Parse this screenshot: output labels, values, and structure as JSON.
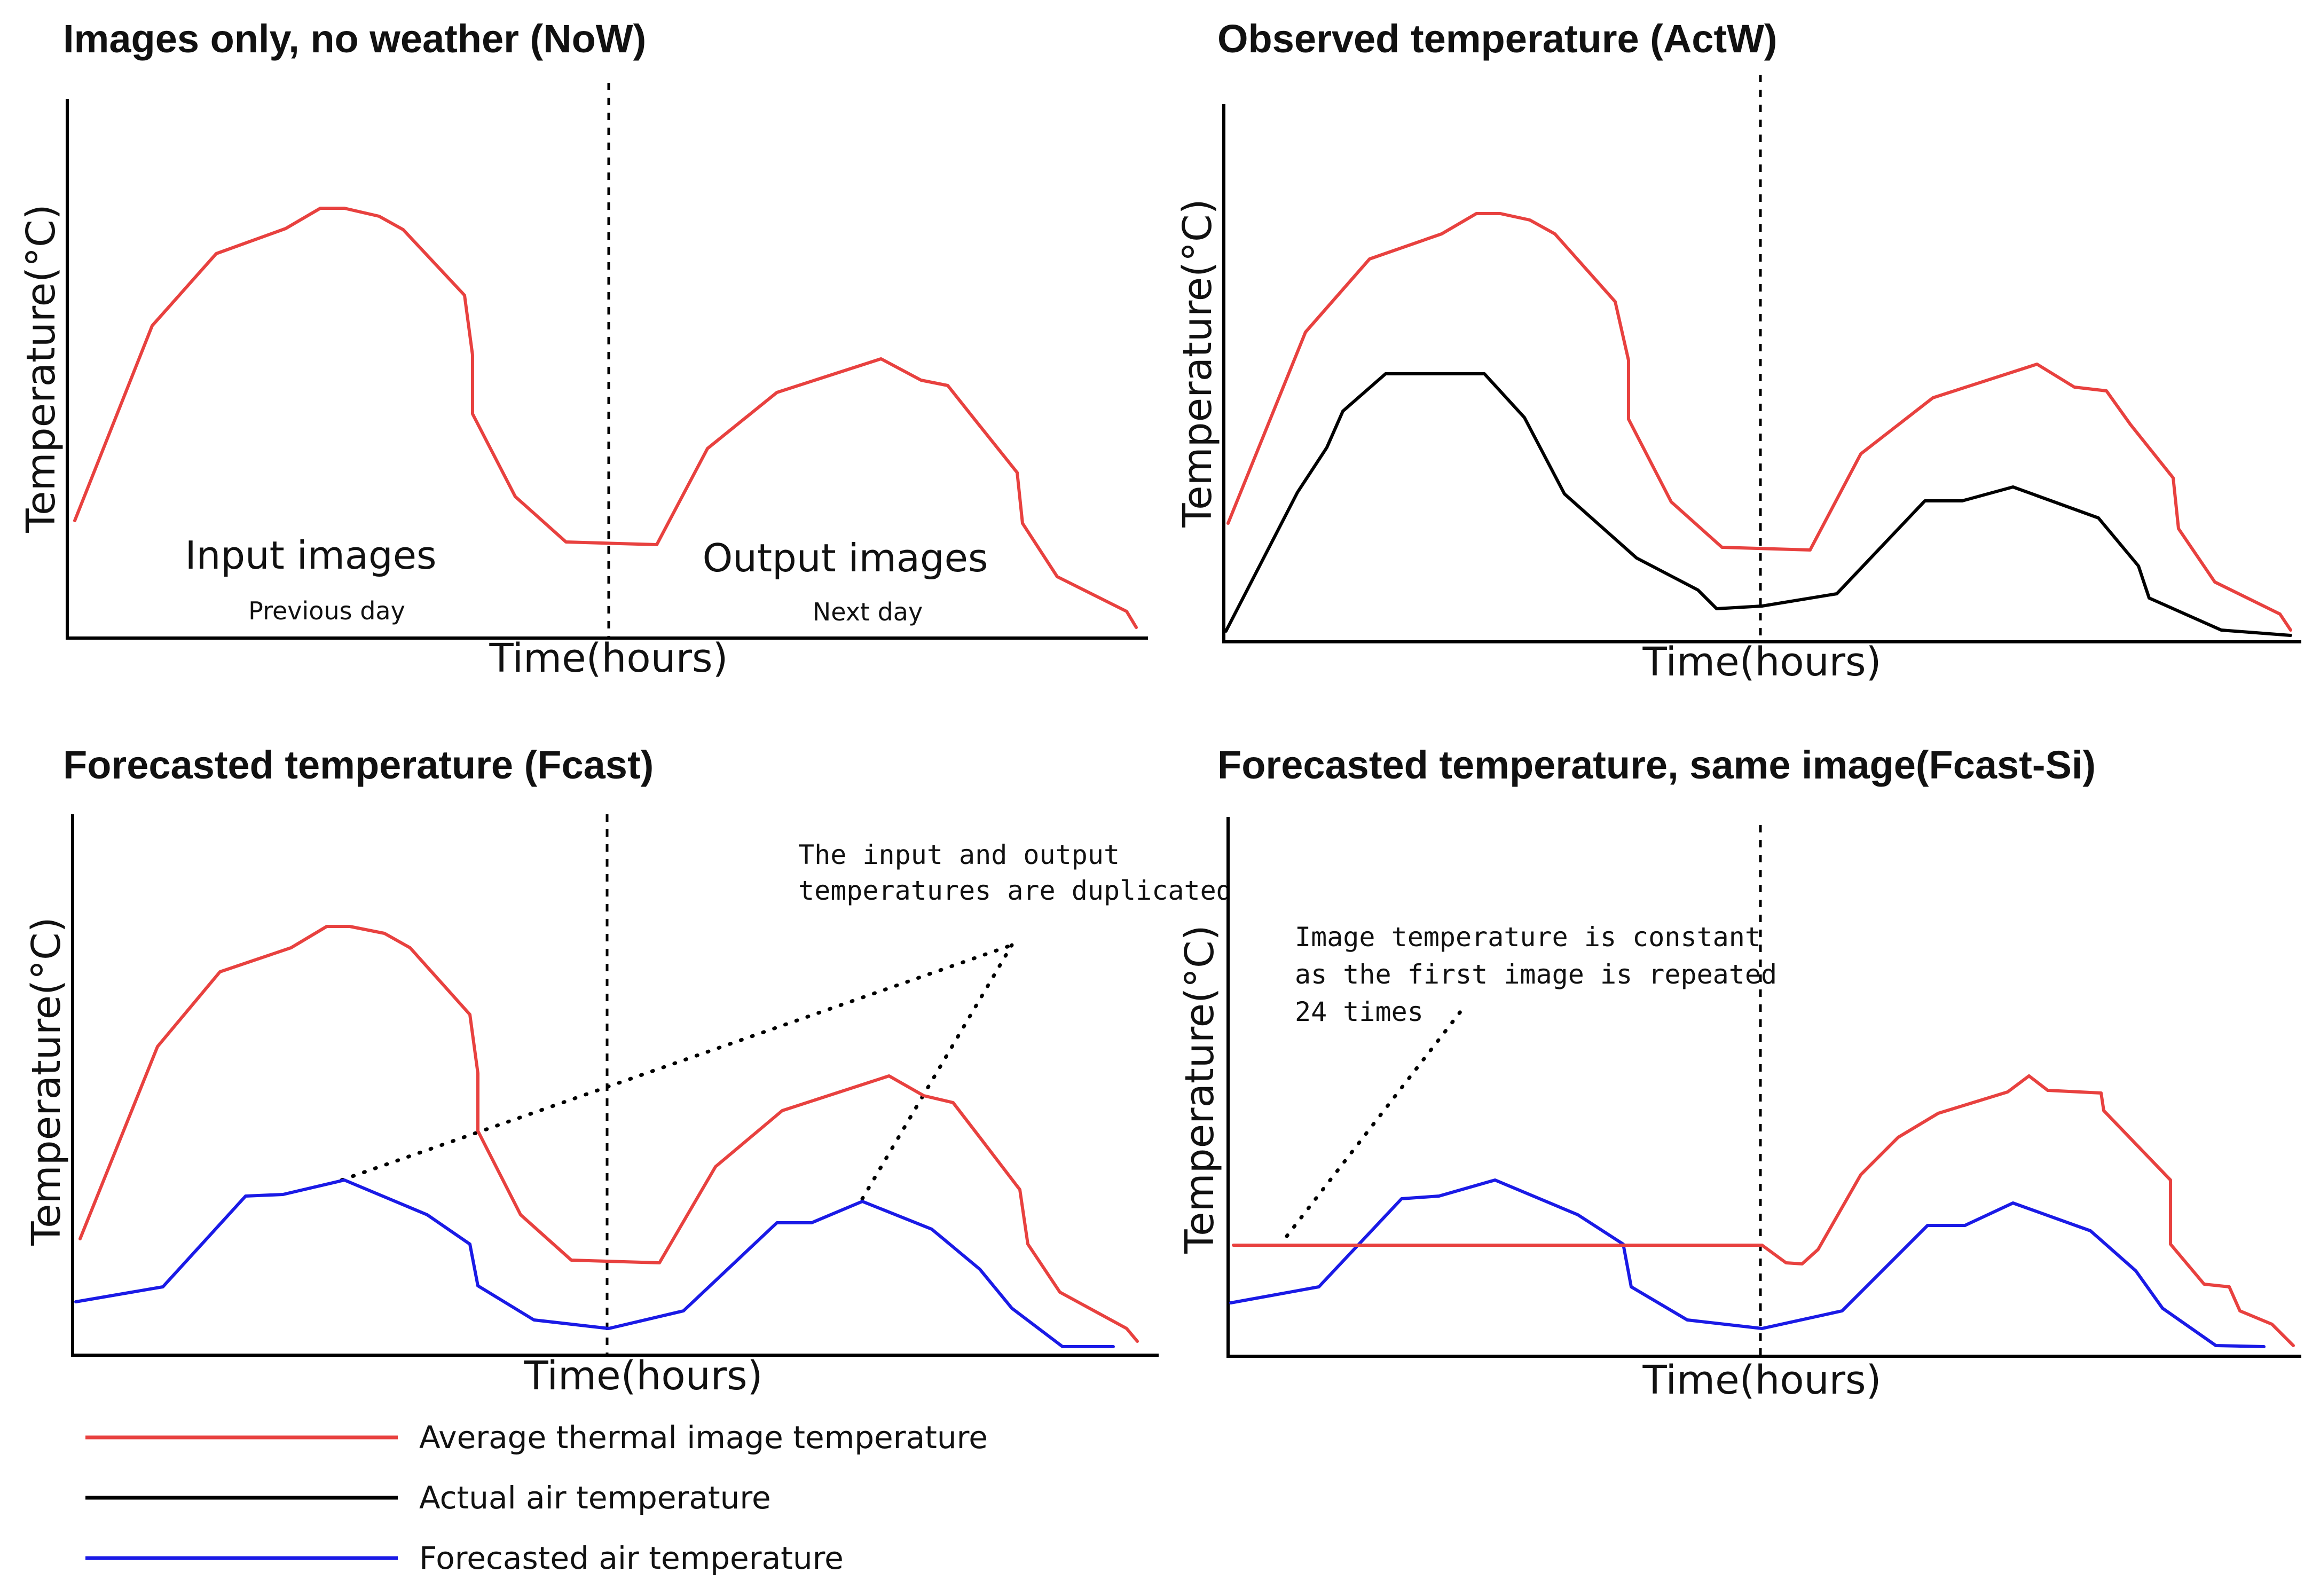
{
  "colors": {
    "thermal": "#e8413f",
    "actual": "#000000",
    "forecast": "#1a1ae6"
  },
  "panels": [
    {
      "id": "now",
      "title": "Images only, no weather (NoW)",
      "xlabel": "Time(hours)",
      "ylabel": "Temperature(°C)",
      "regions": {
        "left": "Input images",
        "left_sub": "Previous day",
        "right": "Output images",
        "right_sub": "Next day"
      },
      "series": [
        "thermal"
      ]
    },
    {
      "id": "actw",
      "title": "Observed temperature (ActW)",
      "xlabel": "Time(hours)",
      "ylabel": "Temperature(°C)",
      "series": [
        "thermal",
        "actual"
      ]
    },
    {
      "id": "fcast",
      "title": "Forecasted temperature (Fcast)",
      "xlabel": "Time(hours)",
      "ylabel": "Temperature(°C)",
      "note": [
        "The input and output",
        "temperatures are duplicated"
      ],
      "series": [
        "thermal",
        "forecast"
      ]
    },
    {
      "id": "fcastsi",
      "title": "Forecasted temperature, same image(Fcast-Si)",
      "xlabel": "Time(hours)",
      "ylabel": "Temperature(°C)",
      "note": [
        "Image temperature is constant",
        "as the first image is repeated",
        "24 times"
      ],
      "series": [
        "thermal",
        "forecast"
      ]
    }
  ],
  "legend": [
    {
      "key": "thermal",
      "label": "Average thermal image temperature"
    },
    {
      "key": "actual",
      "label": "Actual air temperature"
    },
    {
      "key": "forecast",
      "label": "Forecasted air temperature"
    }
  ]
}
